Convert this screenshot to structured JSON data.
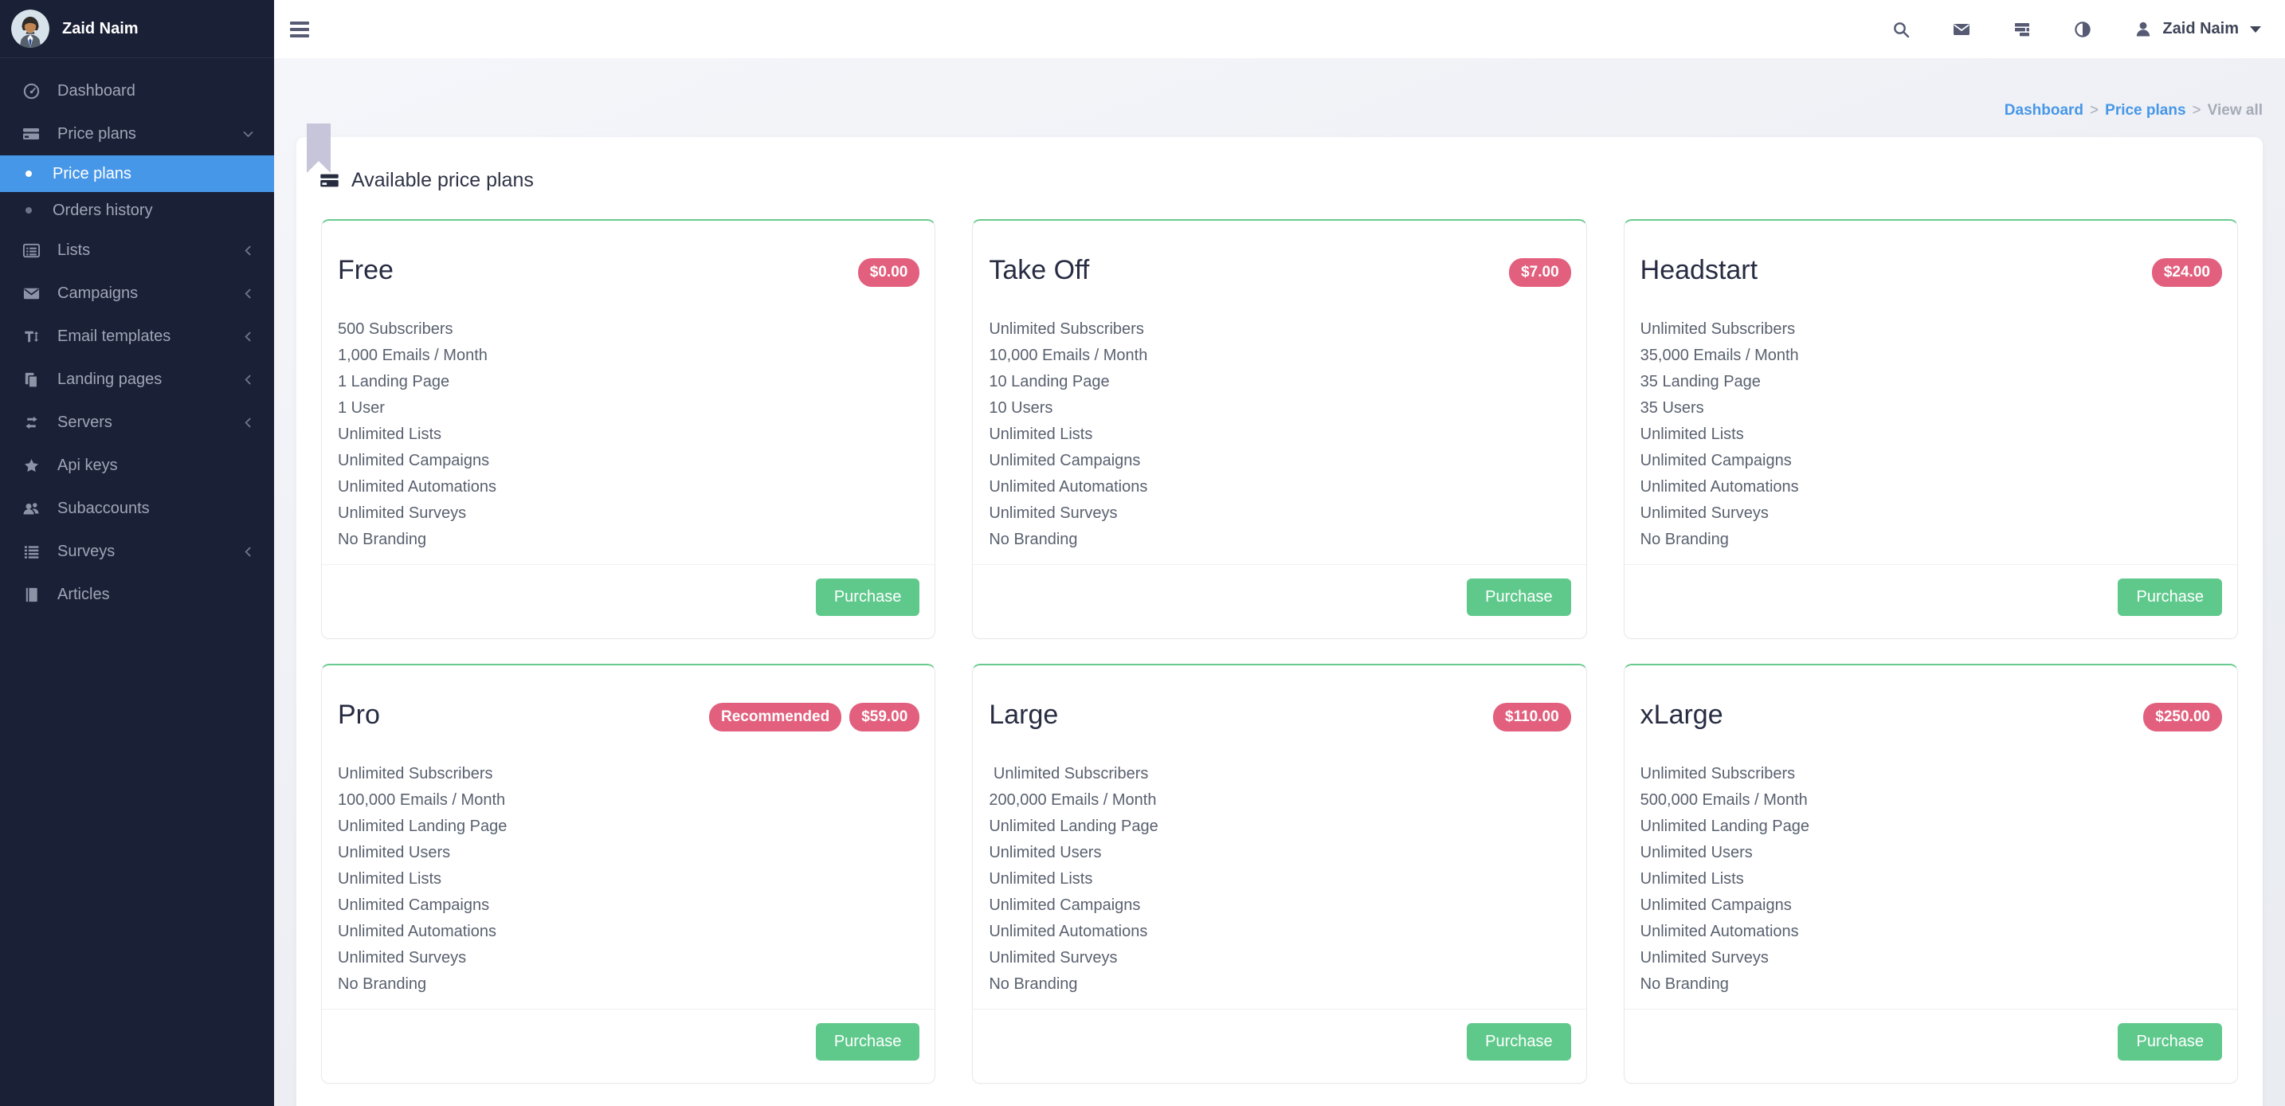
{
  "user": {
    "name": "Zaid Naim"
  },
  "topbar": {
    "icons": [
      "search",
      "messages",
      "queue",
      "contrast"
    ],
    "user_icon": "person",
    "caret_icon": "caret-down"
  },
  "sidebar": {
    "items": [
      {
        "label": "Dashboard",
        "icon": "gauge",
        "type": "item"
      },
      {
        "label": "Price plans",
        "icon": "credit-card",
        "type": "item",
        "chevron": "down"
      },
      {
        "label": "Price plans",
        "type": "sub",
        "active": true
      },
      {
        "label": "Orders history",
        "type": "sub"
      },
      {
        "label": "Lists",
        "icon": "list-alt",
        "type": "item",
        "chevron": "left"
      },
      {
        "label": "Campaigns",
        "icon": "envelope",
        "type": "item",
        "chevron": "left"
      },
      {
        "label": "Email templates",
        "icon": "text-height",
        "type": "item",
        "chevron": "left"
      },
      {
        "label": "Landing pages",
        "icon": "pages",
        "type": "item",
        "chevron": "left"
      },
      {
        "label": "Servers",
        "icon": "transfer",
        "type": "item",
        "chevron": "left"
      },
      {
        "label": "Api keys",
        "icon": "star",
        "type": "item"
      },
      {
        "label": "Subaccounts",
        "icon": "users",
        "type": "item"
      },
      {
        "label": "Surveys",
        "icon": "list",
        "type": "item",
        "chevron": "left"
      },
      {
        "label": "Articles",
        "icon": "book",
        "type": "item"
      }
    ]
  },
  "breadcrumb": {
    "separator": ">",
    "items": [
      {
        "label": "Dashboard",
        "link": true
      },
      {
        "label": "Price plans",
        "link": true
      },
      {
        "label": "View all",
        "link": false
      }
    ]
  },
  "panel": {
    "title": "Available price plans",
    "title_icon": "credit-card",
    "purchase_label": "Purchase"
  },
  "plans": [
    {
      "name": "Free",
      "price": "$0.00",
      "features": [
        "500 Subscribers",
        "1,000 Emails / Month",
        "1 Landing Page",
        "1 User",
        "Unlimited Lists",
        "Unlimited Campaigns",
        "Unlimited Automations",
        "Unlimited Surveys",
        "No Branding"
      ]
    },
    {
      "name": "Take Off",
      "price": "$7.00",
      "features": [
        "Unlimited Subscribers",
        "10,000 Emails / Month",
        "10 Landing Page",
        "10 Users",
        "Unlimited Lists",
        "Unlimited Campaigns",
        "Unlimited Automations",
        "Unlimited Surveys",
        "No Branding"
      ]
    },
    {
      "name": "Headstart",
      "price": "$24.00",
      "features": [
        "Unlimited Subscribers",
        "35,000 Emails / Month",
        "35 Landing Page",
        "35 Users",
        "Unlimited Lists",
        "Unlimited Campaigns",
        "Unlimited Automations",
        "Unlimited Surveys",
        "No Branding"
      ]
    },
    {
      "name": "Pro",
      "price": "$59.00",
      "recommended_label": "Recommended",
      "features": [
        "Unlimited Subscribers",
        "100,000 Emails / Month",
        "Unlimited Landing Page",
        "Unlimited Users",
        "Unlimited Lists",
        "Unlimited Campaigns",
        "Unlimited Automations",
        "Unlimited Surveys",
        "No Branding"
      ]
    },
    {
      "name": "Large",
      "price": "$110.00",
      "features": [
        " Unlimited Subscribers",
        "200,000 Emails / Month",
        "Unlimited Landing Page",
        "Unlimited Users",
        "Unlimited Lists",
        "Unlimited Campaigns",
        "Unlimited Automations",
        "Unlimited Surveys",
        "No Branding"
      ]
    },
    {
      "name": "xLarge",
      "price": "$250.00",
      "features": [
        "Unlimited Subscribers",
        "500,000 Emails / Month",
        "Unlimited Landing Page",
        "Unlimited Users",
        "Unlimited Lists",
        "Unlimited Campaigns",
        "Unlimited Automations",
        "Unlimited Surveys",
        "No Branding"
      ]
    }
  ],
  "colors": {
    "sidebar_bg": "#1a2035",
    "active_item": "#4797e8",
    "badge_pink": "#e2607d",
    "button_green": "#5fc98c",
    "card_top_green": "#69ca8f",
    "link_blue": "#4797e8"
  }
}
